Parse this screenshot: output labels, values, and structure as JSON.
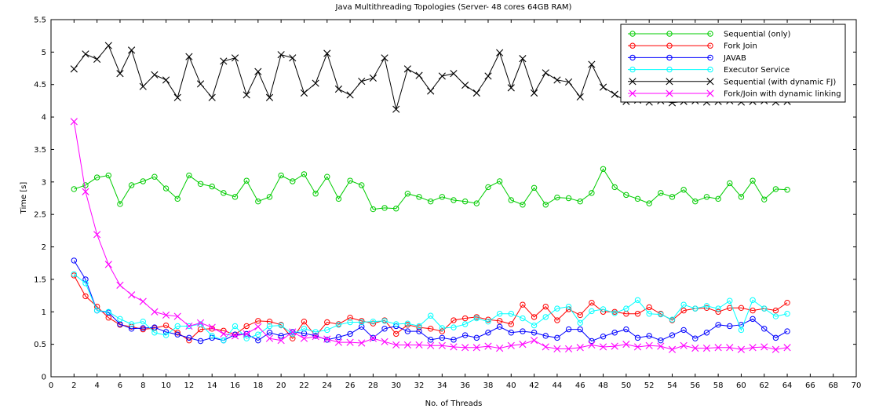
{
  "chart_data": {
    "type": "line",
    "title": "Java Multithreading Topologies (Server- 48 cores 64GB RAM)",
    "xlabel": "No. of Threads",
    "ylabel": "Time [s]",
    "xlim": [
      0,
      70
    ],
    "ylim": [
      0,
      5.5
    ],
    "xticks": [
      0,
      2,
      4,
      6,
      8,
      10,
      12,
      14,
      16,
      18,
      20,
      22,
      24,
      26,
      28,
      30,
      32,
      34,
      36,
      38,
      40,
      42,
      44,
      46,
      48,
      50,
      52,
      54,
      56,
      58,
      60,
      62,
      64,
      66,
      68,
      70
    ],
    "yticks": [
      0,
      0.5,
      1,
      1.5,
      2,
      2.5,
      3,
      3.5,
      4,
      4.5,
      5,
      5.5
    ],
    "x_tick_labels": [
      "0",
      "2",
      "4",
      "6",
      "8",
      "10",
      "12",
      "14",
      "16",
      "18",
      "20",
      "22",
      "24",
      "26",
      "28",
      "30",
      "32",
      "34",
      "36",
      "38",
      "40",
      "42",
      "44",
      "46",
      "48",
      "50",
      "52",
      "54",
      "56",
      "58",
      "60",
      "62",
      "64",
      "66",
      "68",
      "70"
    ],
    "y_tick_labels": [
      "0",
      "0.5",
      "1",
      "1.5",
      "2",
      "2.5",
      "3",
      "3.5",
      "4",
      "4.5",
      "5",
      "5.5"
    ],
    "grid": false,
    "legend_position": "top-right",
    "x": [
      2,
      3,
      4,
      5,
      6,
      7,
      8,
      9,
      10,
      11,
      12,
      13,
      14,
      15,
      16,
      17,
      18,
      19,
      20,
      21,
      22,
      23,
      24,
      25,
      26,
      27,
      28,
      29,
      30,
      31,
      32,
      33,
      34,
      35,
      36,
      37,
      38,
      39,
      40,
      41,
      42,
      43,
      44,
      45,
      46,
      47,
      48,
      49,
      50,
      51,
      52,
      53,
      54,
      55,
      56,
      57,
      58,
      59,
      60,
      61,
      62,
      63,
      64
    ],
    "series": [
      {
        "name": "Sequential (only)",
        "color": "#00cc00",
        "marker": "circle",
        "values": [
          2.89,
          2.95,
          3.07,
          3.1,
          2.66,
          2.95,
          3.01,
          3.08,
          2.9,
          2.74,
          3.1,
          2.97,
          2.93,
          2.83,
          2.77,
          3.02,
          2.7,
          2.77,
          3.1,
          3.01,
          3.12,
          2.82,
          3.08,
          2.74,
          3.02,
          2.95,
          2.58,
          2.6,
          2.59,
          2.82,
          2.77,
          2.7,
          2.77,
          2.72,
          2.7,
          2.67,
          2.92,
          3.01,
          2.72,
          2.65,
          2.91,
          2.65,
          2.76,
          2.75,
          2.7,
          2.83,
          3.2,
          2.92,
          2.8,
          2.74,
          2.67,
          2.83,
          2.77,
          2.88,
          2.7,
          2.77,
          2.74,
          2.98,
          2.77,
          3.02,
          2.73,
          2.89,
          2.88
        ]
      },
      {
        "name": "Fork Join",
        "color": "#ff0000",
        "marker": "circle",
        "values": [
          1.56,
          1.24,
          1.08,
          0.91,
          0.8,
          0.77,
          0.73,
          0.75,
          0.79,
          0.68,
          0.56,
          0.73,
          0.74,
          0.71,
          0.65,
          0.78,
          0.86,
          0.85,
          0.8,
          0.59,
          0.85,
          0.63,
          0.84,
          0.81,
          0.91,
          0.86,
          0.82,
          0.87,
          0.66,
          0.8,
          0.76,
          0.74,
          0.7,
          0.87,
          0.9,
          0.92,
          0.88,
          0.86,
          0.81,
          1.11,
          0.92,
          1.08,
          0.87,
          1.04,
          0.95,
          1.14,
          1.0,
          1.0,
          0.97,
          0.97,
          1.07,
          0.97,
          0.87,
          1.02,
          1.05,
          1.06,
          1.0,
          1.06,
          1.06,
          1.02,
          1.05,
          1.02,
          1.14
        ]
      },
      {
        "name": "JAVAB",
        "color": "#0000ff",
        "marker": "circle",
        "values": [
          1.79,
          1.5,
          1.02,
          0.99,
          0.81,
          0.74,
          0.75,
          0.76,
          0.69,
          0.65,
          0.6,
          0.55,
          0.6,
          0.56,
          0.65,
          0.66,
          0.56,
          0.68,
          0.63,
          0.69,
          0.67,
          0.63,
          0.57,
          0.61,
          0.66,
          0.77,
          0.6,
          0.74,
          0.78,
          0.7,
          0.7,
          0.57,
          0.6,
          0.57,
          0.64,
          0.6,
          0.68,
          0.77,
          0.68,
          0.7,
          0.68,
          0.63,
          0.6,
          0.73,
          0.73,
          0.55,
          0.62,
          0.68,
          0.73,
          0.6,
          0.63,
          0.56,
          0.64,
          0.72,
          0.59,
          0.68,
          0.8,
          0.78,
          0.8,
          0.89,
          0.74,
          0.6,
          0.7
        ]
      },
      {
        "name": "Executor Service",
        "color": "#00ffff",
        "marker": "circle",
        "values": [
          1.58,
          1.44,
          1.02,
          1.0,
          0.89,
          0.81,
          0.85,
          0.68,
          0.64,
          0.78,
          0.78,
          0.81,
          0.63,
          0.56,
          0.78,
          0.59,
          0.65,
          0.78,
          0.79,
          0.66,
          0.74,
          0.69,
          0.72,
          0.8,
          0.84,
          0.84,
          0.85,
          0.86,
          0.81,
          0.82,
          0.78,
          0.94,
          0.75,
          0.76,
          0.81,
          0.9,
          0.85,
          0.97,
          0.97,
          0.9,
          0.79,
          0.92,
          1.05,
          1.08,
          0.83,
          1.01,
          1.04,
          0.98,
          1.05,
          1.18,
          0.97,
          0.96,
          0.88,
          1.11,
          1.05,
          1.09,
          1.05,
          1.17,
          0.72,
          1.18,
          1.05,
          0.93,
          0.97
        ]
      },
      {
        "name": "Sequential (with dynamic FJ)",
        "color": "#000000",
        "marker": "x",
        "values": [
          4.74,
          4.97,
          4.89,
          5.1,
          4.67,
          5.03,
          4.47,
          4.65,
          4.57,
          4.3,
          4.93,
          4.51,
          4.3,
          4.86,
          4.91,
          4.34,
          4.7,
          4.3,
          4.96,
          4.91,
          4.37,
          4.52,
          4.98,
          4.43,
          4.34,
          4.55,
          4.6,
          4.91,
          4.12,
          4.74,
          4.64,
          4.4,
          4.63,
          4.67,
          4.49,
          4.37,
          4.63,
          4.99,
          4.45,
          4.9,
          4.37,
          4.68,
          4.57,
          4.54,
          4.31,
          4.81,
          4.46,
          4.35,
          4.24,
          4.26,
          4.23,
          4.25,
          4.22,
          4.24,
          4.25,
          4.23,
          4.24,
          4.25,
          4.23,
          4.24,
          4.25,
          4.23,
          4.24
        ]
      },
      {
        "name": "Fork/Join with dynamic linking",
        "color": "#ff00ff",
        "marker": "x",
        "values": [
          3.93,
          2.85,
          2.19,
          1.73,
          1.41,
          1.26,
          1.16,
          1.0,
          0.95,
          0.93,
          0.78,
          0.83,
          0.76,
          0.66,
          0.63,
          0.66,
          0.77,
          0.59,
          0.56,
          0.69,
          0.59,
          0.62,
          0.58,
          0.53,
          0.53,
          0.52,
          0.59,
          0.54,
          0.49,
          0.49,
          0.49,
          0.48,
          0.48,
          0.46,
          0.45,
          0.45,
          0.47,
          0.44,
          0.48,
          0.5,
          0.56,
          0.46,
          0.43,
          0.43,
          0.45,
          0.49,
          0.46,
          0.47,
          0.5,
          0.46,
          0.48,
          0.47,
          0.42,
          0.48,
          0.44,
          0.44,
          0.45,
          0.45,
          0.42,
          0.45,
          0.46,
          0.42,
          0.45
        ]
      }
    ]
  }
}
